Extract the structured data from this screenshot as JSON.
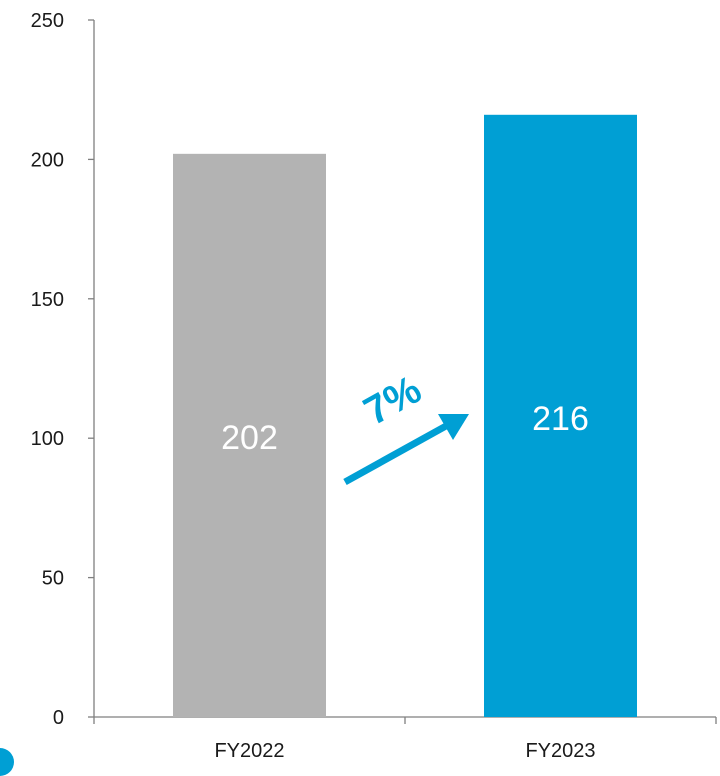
{
  "chart_data": {
    "type": "bar",
    "title": "",
    "xlabel": "",
    "ylabel": "",
    "categories": [
      "FY2022",
      "FY2023"
    ],
    "values": [
      202,
      216
    ],
    "data_labels": [
      "202",
      "216"
    ],
    "bar_colors": [
      "#b3b3b3",
      "#009fd4"
    ],
    "ylim": [
      0,
      250
    ],
    "yticks": [
      0,
      50,
      100,
      150,
      200,
      250
    ],
    "ytick_labels": [
      "0",
      "50",
      "100",
      "150",
      "200",
      "250"
    ],
    "grid": false,
    "legend": "none",
    "annotation": {
      "text": "7%",
      "color": "#009fd4",
      "icon": "arrow-up-right-icon"
    }
  }
}
